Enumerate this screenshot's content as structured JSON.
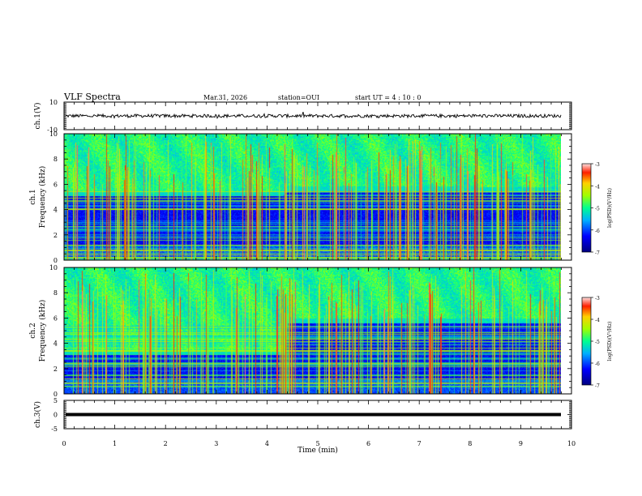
{
  "header": {
    "title": "VLF Spectra",
    "date": "Mar.31, 2026",
    "station": "station=OUI",
    "start": "start  UT =   4 : 10 : 0"
  },
  "chart_data": [
    {
      "type": "line",
      "panel": "ch1-waveform",
      "ylabel": "ch.1(V)",
      "ylim": [
        -10,
        10
      ],
      "yticks": [
        "10",
        "-10"
      ],
      "xlim": [
        0,
        10
      ],
      "series": [
        {
          "values_note_mean": 0,
          "mean": 0,
          "amplitude": 1.2
        }
      ]
    },
    {
      "type": "heatmap",
      "panel": "ch1-spectrogram",
      "ylabel": "ch.1",
      "ylabel2": "Frequency (kHz)",
      "ylim": [
        0,
        10
      ],
      "yticks": [
        "0",
        "2",
        "4",
        "6",
        "8",
        "10"
      ],
      "xlim": [
        0,
        9.8
      ],
      "colorbar": {
        "label": "log(PSD)(V²/Hz)",
        "range": [
          -7,
          -3
        ],
        "ticks": [
          "-3",
          "-4",
          "-5",
          "-6",
          "-7"
        ]
      },
      "band_edge_khz": [
        {
          "t": 0,
          "f": 5.5
        },
        {
          "t": 4.3,
          "f": 5.5
        },
        {
          "t": 4.4,
          "f": 5.9
        },
        {
          "t": 9.8,
          "f": 5.8
        }
      ]
    },
    {
      "type": "heatmap",
      "panel": "ch2-spectrogram",
      "ylabel": "ch.2",
      "ylabel2": "Frequency (kHz)",
      "ylim": [
        0,
        10
      ],
      "yticks": [
        "0",
        "2",
        "4",
        "6",
        "8",
        "10"
      ],
      "xlim": [
        0,
        9.8
      ],
      "colorbar": {
        "label": "log(PSD)(V²/Hz)",
        "range": [
          -7,
          -3
        ],
        "ticks": [
          "-3",
          "-4",
          "-5",
          "-6",
          "-7"
        ]
      },
      "band_edge_khz": [
        {
          "t": 0,
          "f": 3.5
        },
        {
          "t": 4.35,
          "f": 3.5
        },
        {
          "t": 4.4,
          "f": 6.0
        },
        {
          "t": 9.8,
          "f": 6.0
        }
      ]
    },
    {
      "type": "line",
      "panel": "ch3-waveform",
      "ylabel": "ch.3(V)",
      "ylim": [
        -5,
        5
      ],
      "yticks": [
        "5",
        "0",
        "-5"
      ],
      "xlim": [
        0,
        10
      ],
      "series": [
        {
          "mean": 0,
          "amplitude": 0
        }
      ]
    }
  ],
  "xaxis": {
    "label": "Time (min)",
    "ticks": [
      "0",
      "1",
      "2",
      "3",
      "4",
      "5",
      "6",
      "7",
      "8",
      "9",
      "10"
    ],
    "range": [
      0,
      10
    ]
  },
  "colors": {
    "low": "#00007f",
    "mid": "#00ff80",
    "high": "#ff0000"
  }
}
